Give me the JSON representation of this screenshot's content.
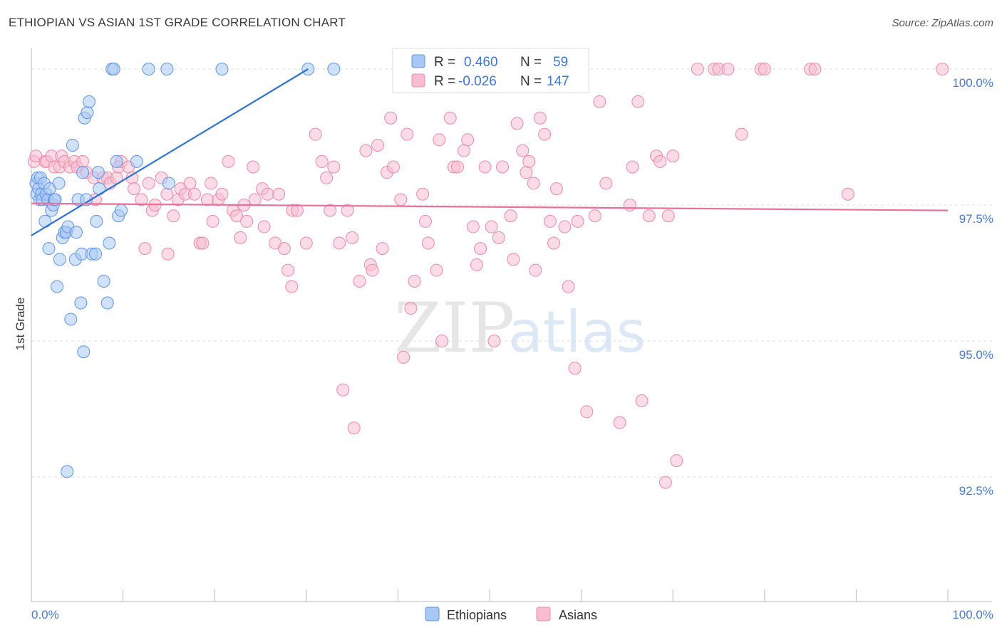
{
  "title": "ETHIOPIAN VS ASIAN 1ST GRADE CORRELATION CHART",
  "source": "Source: ZipAtlas.com",
  "watermark": {
    "zip": "ZIP",
    "atlas": "atlas"
  },
  "colors": {
    "ethiopians_fill": "#a9c8f5",
    "ethiopians_stroke": "#5f94e3",
    "ethiopians_line": "#2f72d6",
    "asians_fill": "#f8bdd0",
    "asians_stroke": "#ea8aab",
    "asians_line": "#e8709b",
    "tick_text": "#4a7bd0",
    "grid": "#dddddd"
  },
  "legend": {
    "rows": [
      {
        "r_label": "R =",
        "r_value": "0.460",
        "n_label": "N =",
        "n_value": "59"
      },
      {
        "r_label": "R =",
        "r_value": "-0.026",
        "n_label": "N =",
        "n_value": "147"
      }
    ]
  },
  "bottom_legend": [
    "Ethiopians",
    "Asians"
  ],
  "chart_data": {
    "type": "scatter",
    "title": "ETHIOPIAN VS ASIAN 1ST GRADE CORRELATION CHART",
    "xlabel": "",
    "ylabel": "1st Grade",
    "xlim": [
      0,
      100
    ],
    "ylim": [
      90.0,
      100.45
    ],
    "x_tick_labels": [
      "0.0%",
      "100.0%"
    ],
    "y_ticks": [
      92.5,
      95.0,
      97.5,
      100.0
    ],
    "y_tick_labels": [
      "92.5%",
      "95.0%",
      "97.5%",
      "100.0%"
    ],
    "grid": true,
    "series": [
      {
        "name": "Ethiopians",
        "r": 0.46,
        "n": 59,
        "trend": {
          "x": [
            0.0,
            30.2
          ],
          "y": [
            96.94,
            100.0
          ]
        },
        "points": [
          [
            0.5,
            97.9
          ],
          [
            0.6,
            97.7
          ],
          [
            0.7,
            98.0
          ],
          [
            0.8,
            97.8
          ],
          [
            0.9,
            97.6
          ],
          [
            1.0,
            98.0
          ],
          [
            1.1,
            97.7
          ],
          [
            1.2,
            97.6
          ],
          [
            1.4,
            97.9
          ],
          [
            1.5,
            97.2
          ],
          [
            1.6,
            97.7
          ],
          [
            1.8,
            97.6
          ],
          [
            1.9,
            96.7
          ],
          [
            2.0,
            97.8
          ],
          [
            2.2,
            97.4
          ],
          [
            2.4,
            97.5
          ],
          [
            2.5,
            97.6
          ],
          [
            2.6,
            97.6
          ],
          [
            2.8,
            96.0
          ],
          [
            3.0,
            97.9
          ],
          [
            3.1,
            96.5
          ],
          [
            3.4,
            96.9
          ],
          [
            3.6,
            97.0
          ],
          [
            3.8,
            97.0
          ],
          [
            4.0,
            97.1
          ],
          [
            4.3,
            95.4
          ],
          [
            4.5,
            98.6
          ],
          [
            4.8,
            96.5
          ],
          [
            4.9,
            97.0
          ],
          [
            5.1,
            97.6
          ],
          [
            5.4,
            95.7
          ],
          [
            5.5,
            96.6
          ],
          [
            5.6,
            98.1
          ],
          [
            5.7,
            94.8
          ],
          [
            5.8,
            99.1
          ],
          [
            6.0,
            97.6
          ],
          [
            6.1,
            99.2
          ],
          [
            6.3,
            99.4
          ],
          [
            6.6,
            96.6
          ],
          [
            7.0,
            96.6
          ],
          [
            7.1,
            97.2
          ],
          [
            7.3,
            98.1
          ],
          [
            7.4,
            97.8
          ],
          [
            7.9,
            96.1
          ],
          [
            8.3,
            95.7
          ],
          [
            8.5,
            96.8
          ],
          [
            8.8,
            100.0
          ],
          [
            9.0,
            100.0
          ],
          [
            9.3,
            98.3
          ],
          [
            9.5,
            97.3
          ],
          [
            9.8,
            97.4
          ],
          [
            11.5,
            98.3
          ],
          [
            12.8,
            100.0
          ],
          [
            15.0,
            97.9
          ],
          [
            14.8,
            100.0
          ],
          [
            20.8,
            100.0
          ],
          [
            30.2,
            100.0
          ],
          [
            33.0,
            100.0
          ],
          [
            3.9,
            92.6
          ]
        ]
      },
      {
        "name": "Asians",
        "r": -0.026,
        "n": 147,
        "trend": {
          "x": [
            0.0,
            100.0
          ],
          "y": [
            97.53,
            97.4
          ]
        },
        "points": [
          [
            0.3,
            98.3
          ],
          [
            0.5,
            98.4
          ],
          [
            1.5,
            98.3
          ],
          [
            1.7,
            98.3
          ],
          [
            2.2,
            98.4
          ],
          [
            2.5,
            98.2
          ],
          [
            3.1,
            98.2
          ],
          [
            3.3,
            98.4
          ],
          [
            3.6,
            98.3
          ],
          [
            4.2,
            98.2
          ],
          [
            4.7,
            98.3
          ],
          [
            5.0,
            98.2
          ],
          [
            5.6,
            98.3
          ],
          [
            6.0,
            98.1
          ],
          [
            6.8,
            98.0
          ],
          [
            7.0,
            97.6
          ],
          [
            7.8,
            98.0
          ],
          [
            8.3,
            98.0
          ],
          [
            8.6,
            97.9
          ],
          [
            9.3,
            98.0
          ],
          [
            9.5,
            98.2
          ],
          [
            9.8,
            98.3
          ],
          [
            10.6,
            98.2
          ],
          [
            11.0,
            98.0
          ],
          [
            11.2,
            97.8
          ],
          [
            12.0,
            97.6
          ],
          [
            12.4,
            96.7
          ],
          [
            12.8,
            97.9
          ],
          [
            13.2,
            97.4
          ],
          [
            13.5,
            97.5
          ],
          [
            14.2,
            98.0
          ],
          [
            14.8,
            97.7
          ],
          [
            14.9,
            96.6
          ],
          [
            15.5,
            97.3
          ],
          [
            16.0,
            97.6
          ],
          [
            16.3,
            97.8
          ],
          [
            16.8,
            97.7
          ],
          [
            17.3,
            97.9
          ],
          [
            17.8,
            97.7
          ],
          [
            18.4,
            96.8
          ],
          [
            18.7,
            96.8
          ],
          [
            19.2,
            97.6
          ],
          [
            19.6,
            97.9
          ],
          [
            19.8,
            97.2
          ],
          [
            20.4,
            97.6
          ],
          [
            20.8,
            97.7
          ],
          [
            21.5,
            98.3
          ],
          [
            22.0,
            97.4
          ],
          [
            22.4,
            97.3
          ],
          [
            22.8,
            96.9
          ],
          [
            23.2,
            97.5
          ],
          [
            23.5,
            97.2
          ],
          [
            24.2,
            98.2
          ],
          [
            24.4,
            97.6
          ],
          [
            25.2,
            97.8
          ],
          [
            25.4,
            97.1
          ],
          [
            25.8,
            97.7
          ],
          [
            26.6,
            96.8
          ],
          [
            27.0,
            97.7
          ],
          [
            27.6,
            96.7
          ],
          [
            28.0,
            96.3
          ],
          [
            28.4,
            96.0
          ],
          [
            28.5,
            97.4
          ],
          [
            29.0,
            97.4
          ],
          [
            30.0,
            96.8
          ],
          [
            31.0,
            98.8
          ],
          [
            31.7,
            98.3
          ],
          [
            32.2,
            98.0
          ],
          [
            32.6,
            97.4
          ],
          [
            33.0,
            98.2
          ],
          [
            33.6,
            96.8
          ],
          [
            34.0,
            94.1
          ],
          [
            34.5,
            97.4
          ],
          [
            35.0,
            96.9
          ],
          [
            35.2,
            93.4
          ],
          [
            35.8,
            96.1
          ],
          [
            36.5,
            98.5
          ],
          [
            37.0,
            96.4
          ],
          [
            37.2,
            96.3
          ],
          [
            37.8,
            98.6
          ],
          [
            38.3,
            96.7
          ],
          [
            38.8,
            98.1
          ],
          [
            39.2,
            99.1
          ],
          [
            39.5,
            98.2
          ],
          [
            40.3,
            97.6
          ],
          [
            40.6,
            94.7
          ],
          [
            41.0,
            98.8
          ],
          [
            41.4,
            95.6
          ],
          [
            41.8,
            96.1
          ],
          [
            42.7,
            97.7
          ],
          [
            43.0,
            97.2
          ],
          [
            43.3,
            96.8
          ],
          [
            44.2,
            96.3
          ],
          [
            44.5,
            98.7
          ],
          [
            44.8,
            95.0
          ],
          [
            45.7,
            99.1
          ],
          [
            46.1,
            98.2
          ],
          [
            46.5,
            98.2
          ],
          [
            47.2,
            98.5
          ],
          [
            47.6,
            98.7
          ],
          [
            48.2,
            97.1
          ],
          [
            48.6,
            96.4
          ],
          [
            49.0,
            96.7
          ],
          [
            49.5,
            98.2
          ],
          [
            50.2,
            97.1
          ],
          [
            50.5,
            95.0
          ],
          [
            51.0,
            96.9
          ],
          [
            51.4,
            98.2
          ],
          [
            52.3,
            97.3
          ],
          [
            52.6,
            96.5
          ],
          [
            53.0,
            99.0
          ],
          [
            53.6,
            98.5
          ],
          [
            54.0,
            98.1
          ],
          [
            54.3,
            98.3
          ],
          [
            54.8,
            97.9
          ],
          [
            55.0,
            96.3
          ],
          [
            55.5,
            99.1
          ],
          [
            56.0,
            98.8
          ],
          [
            56.6,
            97.2
          ],
          [
            57.0,
            96.8
          ],
          [
            57.3,
            97.8
          ],
          [
            58.2,
            97.1
          ],
          [
            58.6,
            96.0
          ],
          [
            59.3,
            94.5
          ],
          [
            59.6,
            97.2
          ],
          [
            60.6,
            93.7
          ],
          [
            61.5,
            97.3
          ],
          [
            62.0,
            99.4
          ],
          [
            62.7,
            97.9
          ],
          [
            64.2,
            93.5
          ],
          [
            65.3,
            97.5
          ],
          [
            65.6,
            98.2
          ],
          [
            66.2,
            99.4
          ],
          [
            66.6,
            93.9
          ],
          [
            67.4,
            97.3
          ],
          [
            68.2,
            98.4
          ],
          [
            68.6,
            98.3
          ],
          [
            69.2,
            92.4
          ],
          [
            69.5,
            97.3
          ],
          [
            70.0,
            98.4
          ],
          [
            70.4,
            92.8
          ],
          [
            72.7,
            100.0
          ],
          [
            74.5,
            100.0
          ],
          [
            75.0,
            100.0
          ],
          [
            76.0,
            100.0
          ],
          [
            77.5,
            98.8
          ],
          [
            79.6,
            100.0
          ],
          [
            80.0,
            100.0
          ],
          [
            85.0,
            100.0
          ],
          [
            85.5,
            100.0
          ],
          [
            89.1,
            97.7
          ],
          [
            99.4,
            100.0
          ]
        ]
      }
    ]
  }
}
